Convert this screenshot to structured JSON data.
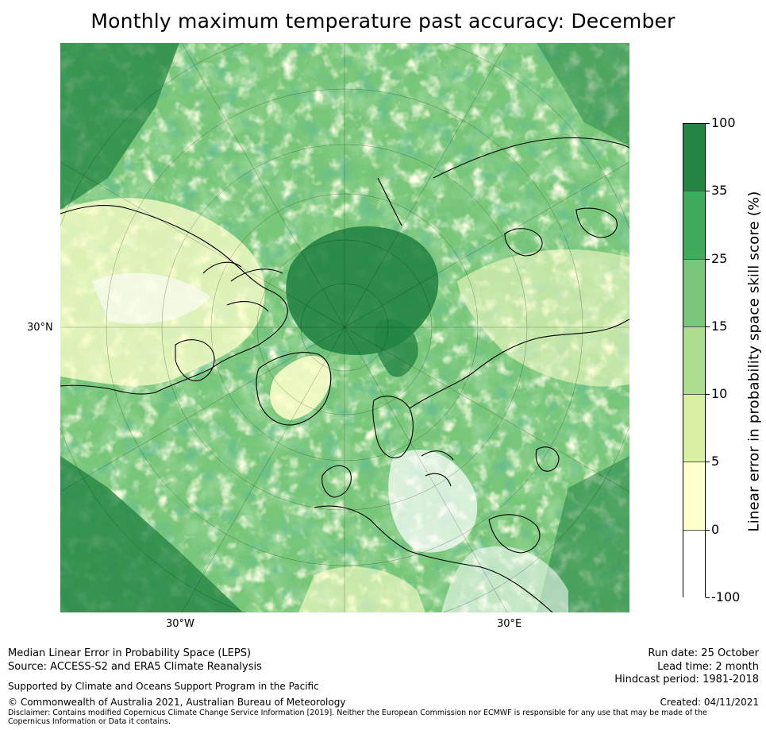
{
  "title": "Monthly maximum temperature past accuracy: December",
  "map": {
    "projection": "north-polar-stereographic",
    "lat_label": "30°N",
    "lon_labels": [
      "30°W",
      "30°E"
    ]
  },
  "colorbar": {
    "title": "Linear error in probability space skill score (%)",
    "tick_labels": [
      "100",
      "35",
      "25",
      "15",
      "10",
      "5",
      "0",
      "-100"
    ],
    "bins": [
      {
        "range": "35 to 100",
        "color": "#238443"
      },
      {
        "range": "25 to 35",
        "color": "#41ab5d"
      },
      {
        "range": "15 to 25",
        "color": "#78c679"
      },
      {
        "range": "10 to 15",
        "color": "#addd8e"
      },
      {
        "range": "5 to 10",
        "color": "#d9f0a3"
      },
      {
        "range": "0 to 5",
        "color": "#ffffcc"
      },
      {
        "range": "-100 to 0",
        "color": "#ffffff"
      }
    ]
  },
  "footer": {
    "line1": "Median Linear Error in Probability Space (LEPS)",
    "line2": "Source: ACCESS-S2 and ERA5 Climate Reanalysis",
    "support": "Supported by Climate and Oceans Support Program in the Pacific",
    "copyright": "© Commonwealth of Australia 2021, Australian Bureau of Meteorology",
    "disclaimer": "Disclaimer: Contains modified Copernicus Climate Change Service Information [2019]. Neither the European Commission nor ECMWF is responsible for any use that may be made of the Copernicus Information or Data it contains.",
    "run_date": "Run date: 25 October",
    "lead_time": "Lead time: 2 month",
    "hindcast": "Hindcast period: 1981-2018",
    "created": "Created: 04/11/2021"
  }
}
